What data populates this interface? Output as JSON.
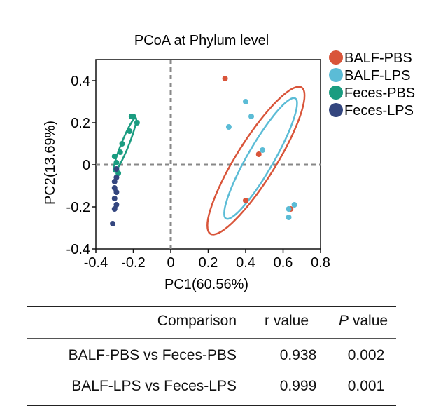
{
  "chart_data": {
    "type": "scatter",
    "title": "PCoA at Phylum level",
    "xlabel": "PC1(60.56%)",
    "ylabel": "PC2(13.69%)",
    "xlim": [
      -0.4,
      0.8
    ],
    "ylim": [
      -0.4,
      0.5
    ],
    "xticks": [
      -0.4,
      -0.2,
      0,
      0.2,
      0.4,
      0.6,
      0.8
    ],
    "xtick_labels": [
      "-0.4",
      "-0.2",
      "0",
      "0.2",
      "0.4",
      "0.6",
      "0.8"
    ],
    "yticks": [
      -0.4,
      -0.2,
      0,
      0.2,
      0.4
    ],
    "ytick_labels": [
      "-0.4",
      "-0.2",
      "0",
      "0.2",
      "0.4"
    ],
    "reference_lines": {
      "x": 0,
      "y": 0
    },
    "legend_position": "top-right-outside",
    "series": [
      {
        "name": "BALF-PBS",
        "color": "#d9553a",
        "points": [
          [
            0.29,
            0.41
          ],
          [
            0.47,
            0.05
          ],
          [
            0.4,
            -0.17
          ],
          [
            0.64,
            -0.21
          ]
        ],
        "ellipse": {
          "cx": 0.455,
          "cy": 0.02,
          "rx": 0.46,
          "ry": 0.105,
          "angle_deg": -58
        }
      },
      {
        "name": "BALF-LPS",
        "color": "#5bbcd6",
        "points": [
          [
            0.4,
            0.3
          ],
          [
            0.43,
            0.23
          ],
          [
            0.31,
            0.18
          ],
          [
            0.49,
            0.07
          ],
          [
            0.66,
            -0.19
          ],
          [
            0.63,
            -0.21
          ],
          [
            0.63,
            -0.25
          ]
        ],
        "ellipse": {
          "cx": 0.48,
          "cy": 0.03,
          "rx": 0.37,
          "ry": 0.07,
          "angle_deg": -60
        }
      },
      {
        "name": "Feces-PBS",
        "color": "#1a9c80",
        "points": [
          [
            -0.21,
            0.23
          ],
          [
            -0.2,
            0.23
          ],
          [
            -0.18,
            0.2
          ],
          [
            -0.22,
            0.16
          ],
          [
            -0.26,
            0.1
          ],
          [
            -0.27,
            0.06
          ],
          [
            -0.29,
            0.01
          ],
          [
            -0.28,
            -0.04
          ],
          [
            -0.3,
            0.04
          ]
        ],
        "ellipse": {
          "cx": -0.245,
          "cy": 0.095,
          "rx": 0.155,
          "ry": 0.02,
          "angle_deg": -68
        }
      },
      {
        "name": "Feces-LPS",
        "color": "#34467f",
        "points": [
          [
            -0.29,
            -0.02
          ],
          [
            -0.29,
            -0.06
          ],
          [
            -0.3,
            -0.08
          ],
          [
            -0.3,
            -0.11
          ],
          [
            -0.29,
            -0.13
          ],
          [
            -0.3,
            -0.16
          ],
          [
            -0.29,
            -0.19
          ],
          [
            -0.3,
            -0.21
          ],
          [
            -0.31,
            -0.28
          ]
        ],
        "ellipse": null
      }
    ]
  },
  "table": {
    "headers": {
      "comparison": "Comparison",
      "r": "r value",
      "p_letter": "P",
      "p_rest": " value"
    },
    "rows": [
      {
        "comparison": "BALF-PBS vs Feces-PBS",
        "r": "0.938",
        "p": "0.002"
      },
      {
        "comparison": "BALF-LPS vs Feces-LPS",
        "r": "0.999",
        "p": "0.001"
      }
    ]
  }
}
